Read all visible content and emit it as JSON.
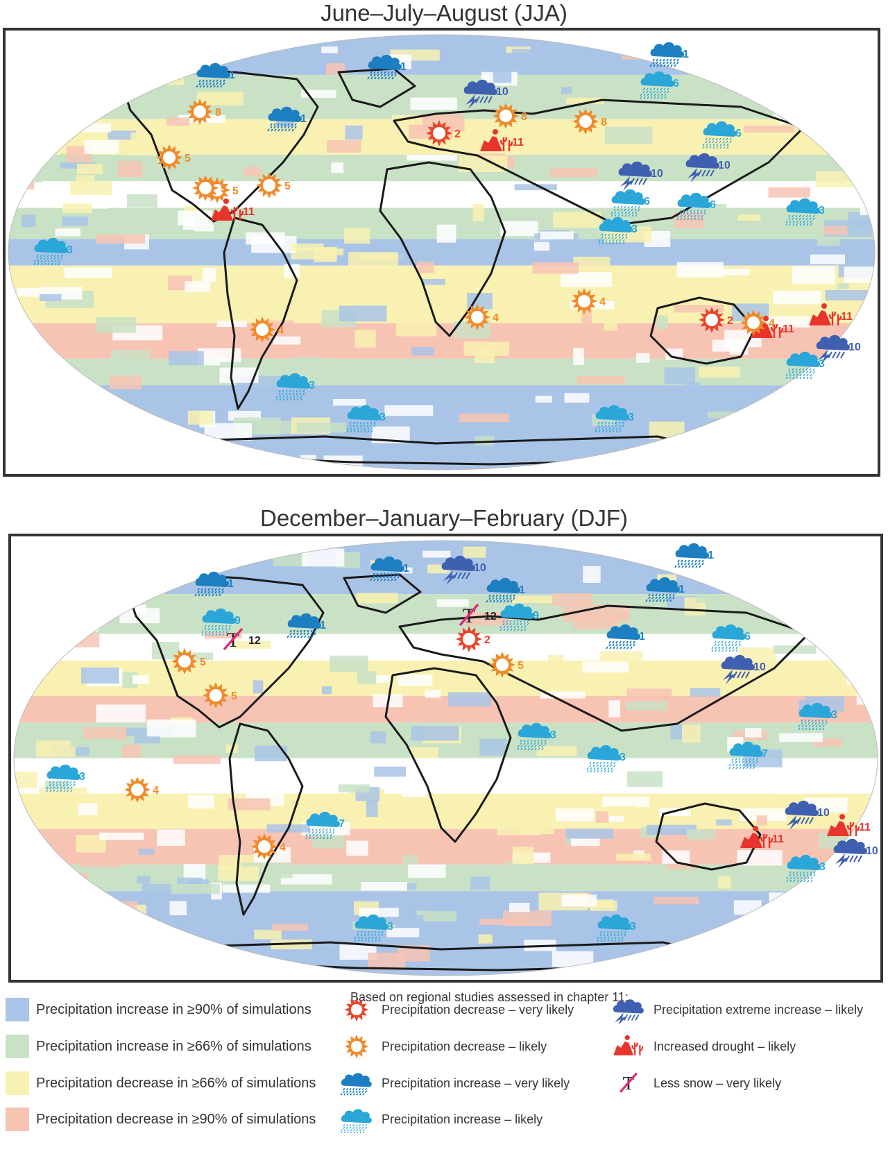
{
  "panels": {
    "jja_title": "June–July–August (JJA)",
    "djf_title": "December–January–February (DJF)"
  },
  "colors": {
    "increase_90": "#a9c4e6",
    "increase_66": "#c9e2c6",
    "decrease_66": "#f9f1b2",
    "decrease_90": "#f7c4b4",
    "sun_very_likely": "#e8452c",
    "sun_likely": "#f08a2a",
    "rain_very_likely": "#1d7fc2",
    "rain_likely": "#2aa6d8",
    "extreme": "#3f5fb0",
    "drought": "#e8352c",
    "snow_slash": "#e0297a"
  },
  "jja_markers": [
    {
      "icon": "rain-very-likely",
      "label": "1"
    },
    {
      "icon": "rain-very-likely",
      "label": "1"
    },
    {
      "icon": "rain-very-likely",
      "label": "1"
    },
    {
      "icon": "rain-very-likely",
      "label": "1"
    },
    {
      "icon": "extreme-increase",
      "label": "10"
    },
    {
      "icon": "rain-likely",
      "label": "6"
    },
    {
      "icon": "sun-likely",
      "label": "8"
    },
    {
      "icon": "sun-very-likely",
      "label": "2"
    },
    {
      "icon": "sun-likely",
      "label": "8"
    },
    {
      "icon": "sun-likely",
      "label": "8"
    },
    {
      "icon": "drought",
      "label": "11"
    },
    {
      "icon": "rain-likely",
      "label": "6"
    },
    {
      "icon": "sun-likely",
      "label": "5"
    },
    {
      "icon": "sun-likely",
      "label": "5"
    },
    {
      "icon": "sun-likely",
      "label": "5"
    },
    {
      "icon": "sun-likely",
      "label": "5"
    },
    {
      "icon": "extreme-increase",
      "label": "10"
    },
    {
      "icon": "extreme-increase",
      "label": "10"
    },
    {
      "icon": "drought",
      "label": "11"
    },
    {
      "icon": "rain-likely",
      "label": "6"
    },
    {
      "icon": "rain-likely",
      "label": "6"
    },
    {
      "icon": "rain-likely",
      "label": "3"
    },
    {
      "icon": "rain-likely",
      "label": "3"
    },
    {
      "icon": "rain-likely",
      "label": "3"
    },
    {
      "icon": "sun-likely",
      "label": "4"
    },
    {
      "icon": "sun-likely",
      "label": "4"
    },
    {
      "icon": "sun-very-likely",
      "label": "2"
    },
    {
      "icon": "sun-likely",
      "label": "4"
    },
    {
      "icon": "drought",
      "label": "11"
    },
    {
      "icon": "drought",
      "label": "11"
    },
    {
      "icon": "sun-likely",
      "label": "4"
    },
    {
      "icon": "extreme-increase",
      "label": "10"
    },
    {
      "icon": "rain-likely",
      "label": "3"
    },
    {
      "icon": "rain-likely",
      "label": "3"
    },
    {
      "icon": "rain-likely",
      "label": "3"
    },
    {
      "icon": "rain-likely",
      "label": "3"
    }
  ],
  "djf_markers": [
    {
      "icon": "rain-very-likely",
      "label": "1"
    },
    {
      "icon": "extreme-increase",
      "label": "10"
    },
    {
      "icon": "rain-very-likely",
      "label": "1"
    },
    {
      "icon": "rain-very-likely",
      "label": "1"
    },
    {
      "icon": "rain-very-likely",
      "label": "1"
    },
    {
      "icon": "rain-very-likely",
      "label": "1"
    },
    {
      "icon": "rain-likely",
      "label": "9"
    },
    {
      "icon": "less-snow",
      "label": "12"
    },
    {
      "icon": "rain-very-likely",
      "label": "1"
    },
    {
      "icon": "less-snow",
      "label": "12"
    },
    {
      "icon": "rain-likely",
      "label": "9"
    },
    {
      "icon": "rain-very-likely",
      "label": "1"
    },
    {
      "icon": "sun-very-likely",
      "label": "2"
    },
    {
      "icon": "rain-likely",
      "label": "6"
    },
    {
      "icon": "sun-likely",
      "label": "5"
    },
    {
      "icon": "sun-likely",
      "label": "5"
    },
    {
      "icon": "sun-likely",
      "label": "5"
    },
    {
      "icon": "extreme-increase",
      "label": "10"
    },
    {
      "icon": "rain-likely",
      "label": "3"
    },
    {
      "icon": "rain-likely",
      "label": "3"
    },
    {
      "icon": "rain-likely",
      "label": "3"
    },
    {
      "icon": "rain-likely",
      "label": "7"
    },
    {
      "icon": "rain-likely",
      "label": "3"
    },
    {
      "icon": "sun-likely",
      "label": "4"
    },
    {
      "icon": "rain-likely",
      "label": "7"
    },
    {
      "icon": "extreme-increase",
      "label": "10"
    },
    {
      "icon": "drought",
      "label": "11"
    },
    {
      "icon": "drought",
      "label": "11"
    },
    {
      "icon": "sun-likely",
      "label": "4"
    },
    {
      "icon": "extreme-increase",
      "label": "10"
    },
    {
      "icon": "rain-likely",
      "label": "3"
    },
    {
      "icon": "rain-likely",
      "label": "3"
    },
    {
      "icon": "rain-likely",
      "label": "3"
    }
  ],
  "legend": {
    "header": "Based on regional studies assessed in chapter 11:",
    "swatches": [
      {
        "label": "Precipitation increase in ≥90% of simulations",
        "color": "#a9c4e6"
      },
      {
        "label": "Precipitation increase in ≥66% of simulations",
        "color": "#c9e2c6"
      },
      {
        "label": "Precipitation decrease in ≥66% of simulations",
        "color": "#f9f1b2"
      },
      {
        "label": "Precipitation decrease in ≥90% of simulations",
        "color": "#f7c4b4"
      }
    ],
    "icons_mid": [
      {
        "icon": "sun-very-likely",
        "label": "Precipitation decrease – very likely"
      },
      {
        "icon": "sun-likely",
        "label": "Precipitation decrease – likely"
      },
      {
        "icon": "rain-very-likely",
        "label": "Precipitation increase – very likely"
      },
      {
        "icon": "rain-likely",
        "label": "Precipitation increase – likely"
      }
    ],
    "icons_right": [
      {
        "icon": "extreme-increase",
        "label": "Precipitation extreme increase – likely"
      },
      {
        "icon": "drought",
        "label": "Increased drought – likely"
      },
      {
        "icon": "less-snow",
        "label": "Less snow – very likely"
      }
    ]
  }
}
